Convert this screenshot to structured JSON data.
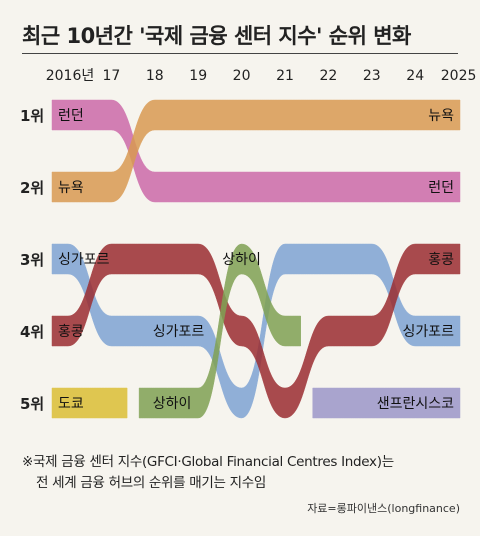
{
  "title": "최근 10년간 '국제 금융 센터 지수' 순위 변화",
  "note": {
    "line1": "※국제 금융 센터 지수(GFCI·Global Financial Centres Index)는",
    "line2": "전 세계 금융 허브의 순위를 매기는 지수임"
  },
  "source": "자료=롱파이낸스(longfinance)",
  "chart_data": {
    "type": "bump",
    "x": [
      "2016년",
      "17",
      "18",
      "19",
      "20",
      "21",
      "22",
      "23",
      "24",
      "2025"
    ],
    "y_labels": [
      "1위",
      "2위",
      "3위",
      "4위",
      "5위"
    ],
    "series": [
      {
        "name": "런던",
        "color": "#cc6aa9",
        "ranks": [
          1,
          1,
          2,
          2,
          2,
          2,
          2,
          2,
          2,
          2
        ]
      },
      {
        "name": "뉴욕",
        "color": "#d99a52",
        "ranks": [
          2,
          2,
          1,
          1,
          1,
          1,
          1,
          1,
          1,
          1
        ]
      },
      {
        "name": "싱가포르",
        "color": "#7fa4d4",
        "ranks": [
          3,
          4,
          4,
          4,
          5,
          3,
          3,
          3,
          4,
          4
        ]
      },
      {
        "name": "홍콩",
        "color": "#9b2d31",
        "ranks": [
          4,
          3,
          3,
          3,
          4,
          5,
          4,
          4,
          3,
          3
        ]
      },
      {
        "name": "도쿄",
        "color": "#dbbf35",
        "ranks": [
          5,
          5,
          null,
          null,
          null,
          null,
          null,
          null,
          null,
          null
        ]
      },
      {
        "name": "상하이",
        "color": "#80a154",
        "ranks": [
          null,
          null,
          5,
          5,
          3,
          4,
          null,
          null,
          null,
          null
        ]
      },
      {
        "name": "샌프란시스코",
        "color": "#9c97c9",
        "ranks": [
          null,
          null,
          null,
          null,
          null,
          null,
          5,
          5,
          5,
          5
        ]
      }
    ],
    "labels": [
      {
        "text": "런던",
        "x": "2016년",
        "rank": 1,
        "anchor": "start"
      },
      {
        "text": "뉴욕",
        "x": "2016년",
        "rank": 2,
        "anchor": "start"
      },
      {
        "text": "싱가포르",
        "x": "2016년",
        "rank": 3,
        "anchor": "start"
      },
      {
        "text": "홍콩",
        "x": "2016년",
        "rank": 4,
        "anchor": "start"
      },
      {
        "text": "도쿄",
        "x": "2016년",
        "rank": 5,
        "anchor": "start"
      },
      {
        "text": "싱가포르",
        "x": "18",
        "rank": 4,
        "anchor": "start"
      },
      {
        "text": "상하이",
        "x": "18",
        "rank": 5,
        "anchor": "start"
      },
      {
        "text": "상하이",
        "x": "20",
        "rank": 3,
        "anchor": "middle"
      },
      {
        "text": "뉴욕",
        "x": "2025",
        "rank": 1,
        "anchor": "end"
      },
      {
        "text": "런던",
        "x": "2025",
        "rank": 2,
        "anchor": "end"
      },
      {
        "text": "홍콩",
        "x": "2025",
        "rank": 3,
        "anchor": "end"
      },
      {
        "text": "싱가포르",
        "x": "2025",
        "rank": 4,
        "anchor": "end"
      },
      {
        "text": "샌프란시스코",
        "x": "2025",
        "rank": 5,
        "anchor": "end"
      }
    ]
  }
}
